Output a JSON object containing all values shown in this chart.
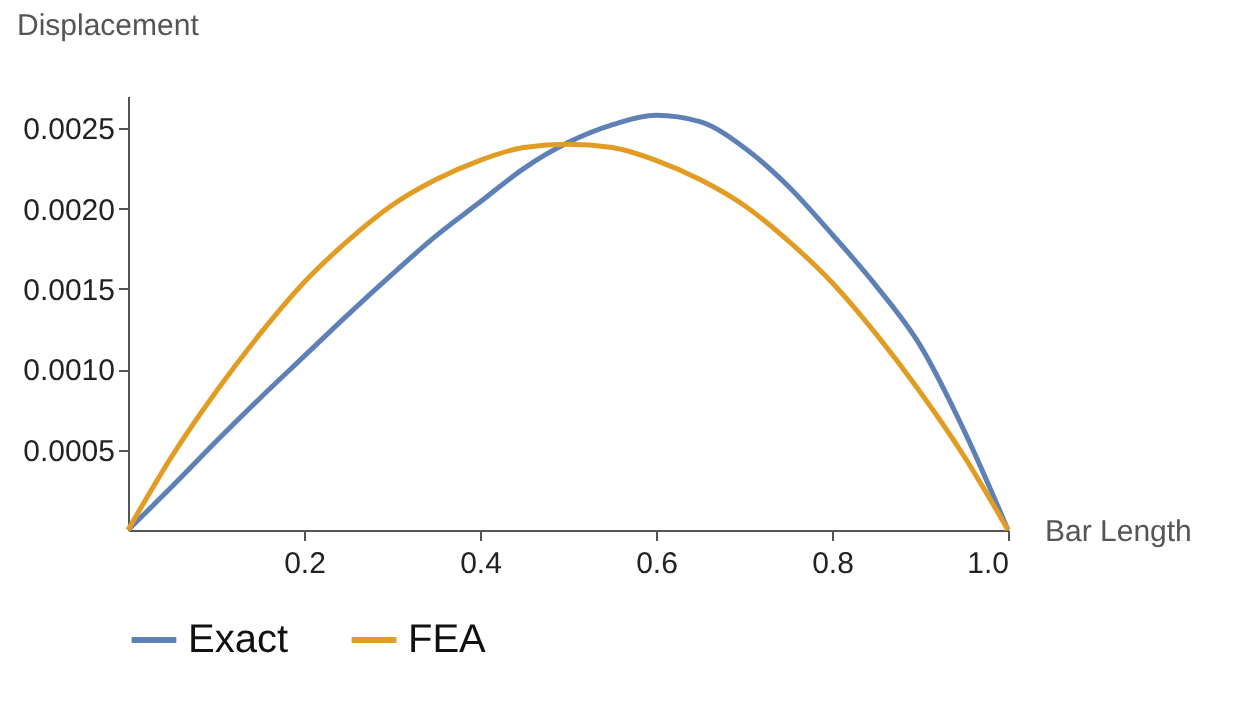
{
  "chart_data": {
    "type": "line",
    "xlabel": "Bar Length",
    "ylabel": "Displacement",
    "x": [
      0,
      0.05,
      0.1,
      0.15,
      0.2,
      0.25,
      0.3,
      0.35,
      0.4,
      0.45,
      0.5,
      0.55,
      0.6,
      0.65,
      0.7,
      0.75,
      0.8,
      0.85,
      0.9,
      0.95,
      1
    ],
    "series": [
      {
        "name": "Exact",
        "color": "#5e81b5",
        "values": [
          0,
          0.00027,
          0.00055,
          0.00082,
          0.00108,
          0.00134,
          0.00159,
          0.00183,
          0.00204,
          0.00225,
          0.00241,
          0.00252,
          0.00258,
          0.00254,
          0.00238,
          0.00214,
          0.00184,
          0.00152,
          0.00115,
          0.00062,
          0
        ]
      },
      {
        "name": "FEA",
        "color": "#e19c24",
        "values": [
          0,
          0.00046,
          0.00086,
          0.00122,
          0.00154,
          0.0018,
          0.00202,
          0.00218,
          0.0023,
          0.00238,
          0.0024,
          0.00238,
          0.0023,
          0.00218,
          0.00202,
          0.0018,
          0.00154,
          0.00122,
          0.00086,
          0.00046,
          0
        ]
      }
    ],
    "xlim": [
      0,
      1
    ],
    "ylim": [
      0,
      0.0027
    ],
    "xticks": [
      {
        "value": 0.2,
        "label": "0.2"
      },
      {
        "value": 0.4,
        "label": "0.4"
      },
      {
        "value": 0.6,
        "label": "0.6"
      },
      {
        "value": 0.8,
        "label": "0.8"
      },
      {
        "value": 1,
        "label": "1.0"
      }
    ],
    "yticks": [
      {
        "value": 0.0005,
        "label": "0.0005"
      },
      {
        "value": 0.001,
        "label": "0.0010"
      },
      {
        "value": 0.0015,
        "label": "0.0015"
      },
      {
        "value": 0.002,
        "label": "0.0020"
      },
      {
        "value": 0.0025,
        "label": "0.0025"
      }
    ],
    "legend": "bottom",
    "grid": false,
    "marker": "none",
    "line_style": "solid"
  }
}
